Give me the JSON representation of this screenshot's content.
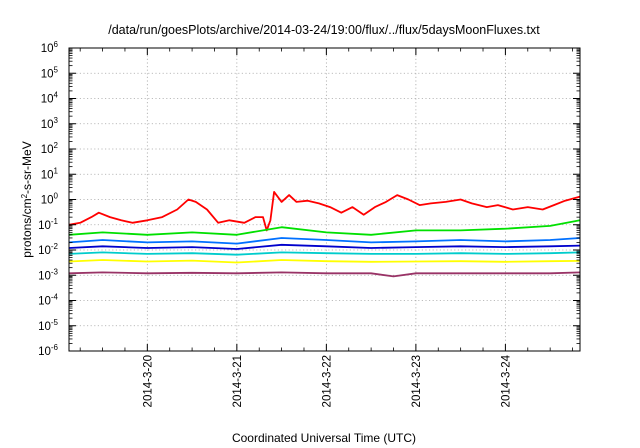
{
  "chart_data": {
    "type": "line",
    "title": "/data/run/goesPlots/archive/2014-03-24/19:00/flux/../flux/5daysMoonFluxes.txt",
    "xlabel": "Coordinated Universal Time (UTC)",
    "ylabel": {
      "base": "protons/cm",
      "sup": "2",
      "rest": "-s-sr-MeV"
    },
    "x_scale": "time",
    "y_scale": "log",
    "xlim": [
      "2014-03-19 03:00",
      "2014-03-24 20:00"
    ],
    "ylim": [
      1e-06,
      1000000.0
    ],
    "x_ticks": [
      {
        "x": "2014-03-20 00:00",
        "label": "2014-3-20"
      },
      {
        "x": "2014-03-21 00:00",
        "label": "2014-3-21"
      },
      {
        "x": "2014-03-22 00:00",
        "label": "2014-3-22"
      },
      {
        "x": "2014-03-23 00:00",
        "label": "2014-3-23"
      },
      {
        "x": "2014-03-24 00:00",
        "label": "2014-3-24"
      }
    ],
    "y_ticks": [
      {
        "exp": -6,
        "label_base": "10",
        "label_exp": "-6"
      },
      {
        "exp": -5,
        "label_base": "10",
        "label_exp": "-5"
      },
      {
        "exp": -4,
        "label_base": "10",
        "label_exp": "-4"
      },
      {
        "exp": -3,
        "label_base": "10",
        "label_exp": "-3"
      },
      {
        "exp": -2,
        "label_base": "10",
        "label_exp": "-2"
      },
      {
        "exp": -1,
        "label_base": "10",
        "label_exp": "-1"
      },
      {
        "exp": 0,
        "label_base": "10",
        "label_exp": "0"
      },
      {
        "exp": 1,
        "label_base": "10",
        "label_exp": "1"
      },
      {
        "exp": 2,
        "label_base": "10",
        "label_exp": "2"
      },
      {
        "exp": 3,
        "label_base": "10",
        "label_exp": "3"
      },
      {
        "exp": 4,
        "label_base": "10",
        "label_exp": "4"
      },
      {
        "exp": 5,
        "label_base": "10",
        "label_exp": "5"
      },
      {
        "exp": 6,
        "label_base": "10",
        "label_exp": "6"
      }
    ],
    "grid": true,
    "legend": "none",
    "series": [
      {
        "color": "#ff0000",
        "values": [
          [
            "2014-03-19 03:00",
            0.1
          ],
          [
            "2014-03-19 06:00",
            0.12
          ],
          [
            "2014-03-19 09:00",
            0.2
          ],
          [
            "2014-03-19 11:00",
            0.3
          ],
          [
            "2014-03-19 14:00",
            0.2
          ],
          [
            "2014-03-19 17:00",
            0.15
          ],
          [
            "2014-03-19 20:00",
            0.12
          ],
          [
            "2014-03-20 00:00",
            0.15
          ],
          [
            "2014-03-20 04:00",
            0.2
          ],
          [
            "2014-03-20 08:00",
            0.4
          ],
          [
            "2014-03-20 11:00",
            1.0
          ],
          [
            "2014-03-20 13:00",
            0.8
          ],
          [
            "2014-03-20 16:00",
            0.4
          ],
          [
            "2014-03-20 19:00",
            0.12
          ],
          [
            "2014-03-20 22:00",
            0.15
          ],
          [
            "2014-03-21 02:00",
            0.12
          ],
          [
            "2014-03-21 05:00",
            0.2
          ],
          [
            "2014-03-21 07:00",
            0.2
          ],
          [
            "2014-03-21 08:00",
            0.06
          ],
          [
            "2014-03-21 09:00",
            0.15
          ],
          [
            "2014-03-21 10:00",
            2.0
          ],
          [
            "2014-03-21 12:00",
            0.8
          ],
          [
            "2014-03-21 14:00",
            1.5
          ],
          [
            "2014-03-21 16:00",
            0.8
          ],
          [
            "2014-03-21 19:00",
            0.9
          ],
          [
            "2014-03-21 22:00",
            0.7
          ],
          [
            "2014-03-22 01:00",
            0.5
          ],
          [
            "2014-03-22 04:00",
            0.3
          ],
          [
            "2014-03-22 07:00",
            0.5
          ],
          [
            "2014-03-22 10:00",
            0.25
          ],
          [
            "2014-03-22 13:00",
            0.5
          ],
          [
            "2014-03-22 16:00",
            0.8
          ],
          [
            "2014-03-22 19:00",
            1.5
          ],
          [
            "2014-03-22 22:00",
            1.0
          ],
          [
            "2014-03-23 01:00",
            0.6
          ],
          [
            "2014-03-23 04:00",
            0.7
          ],
          [
            "2014-03-23 08:00",
            0.8
          ],
          [
            "2014-03-23 12:00",
            1.0
          ],
          [
            "2014-03-23 15:00",
            0.7
          ],
          [
            "2014-03-23 19:00",
            0.5
          ],
          [
            "2014-03-23 22:00",
            0.6
          ],
          [
            "2014-03-24 02:00",
            0.4
          ],
          [
            "2014-03-24 06:00",
            0.5
          ],
          [
            "2014-03-24 10:00",
            0.4
          ],
          [
            "2014-03-24 13:00",
            0.6
          ],
          [
            "2014-03-24 16:00",
            0.9
          ],
          [
            "2014-03-24 20:00",
            1.3
          ]
        ]
      },
      {
        "color": "#00e000",
        "values": [
          [
            "2014-03-19 03:00",
            0.04
          ],
          [
            "2014-03-19 12:00",
            0.05
          ],
          [
            "2014-03-20 00:00",
            0.04
          ],
          [
            "2014-03-20 12:00",
            0.05
          ],
          [
            "2014-03-21 00:00",
            0.04
          ],
          [
            "2014-03-21 12:00",
            0.08
          ],
          [
            "2014-03-22 00:00",
            0.05
          ],
          [
            "2014-03-22 12:00",
            0.04
          ],
          [
            "2014-03-23 00:00",
            0.06
          ],
          [
            "2014-03-23 12:00",
            0.06
          ],
          [
            "2014-03-24 00:00",
            0.07
          ],
          [
            "2014-03-24 12:00",
            0.09
          ],
          [
            "2014-03-24 20:00",
            0.15
          ]
        ]
      },
      {
        "color": "#0070ff",
        "values": [
          [
            "2014-03-19 03:00",
            0.02
          ],
          [
            "2014-03-19 12:00",
            0.025
          ],
          [
            "2014-03-20 00:00",
            0.02
          ],
          [
            "2014-03-20 12:00",
            0.022
          ],
          [
            "2014-03-21 00:00",
            0.018
          ],
          [
            "2014-03-21 12:00",
            0.03
          ],
          [
            "2014-03-22 00:00",
            0.025
          ],
          [
            "2014-03-22 12:00",
            0.02
          ],
          [
            "2014-03-23 00:00",
            0.022
          ],
          [
            "2014-03-23 12:00",
            0.025
          ],
          [
            "2014-03-24 00:00",
            0.022
          ],
          [
            "2014-03-24 12:00",
            0.025
          ],
          [
            "2014-03-24 20:00",
            0.03
          ]
        ]
      },
      {
        "color": "#0000cc",
        "values": [
          [
            "2014-03-19 03:00",
            0.012
          ],
          [
            "2014-03-19 12:00",
            0.014
          ],
          [
            "2014-03-20 00:00",
            0.012
          ],
          [
            "2014-03-20 12:00",
            0.013
          ],
          [
            "2014-03-21 00:00",
            0.011
          ],
          [
            "2014-03-21 12:00",
            0.016
          ],
          [
            "2014-03-22 00:00",
            0.014
          ],
          [
            "2014-03-22 12:00",
            0.012
          ],
          [
            "2014-03-23 00:00",
            0.013
          ],
          [
            "2014-03-23 12:00",
            0.014
          ],
          [
            "2014-03-24 00:00",
            0.013
          ],
          [
            "2014-03-24 12:00",
            0.014
          ],
          [
            "2014-03-24 20:00",
            0.015
          ]
        ]
      },
      {
        "color": "#00cccc",
        "values": [
          [
            "2014-03-19 03:00",
            0.007
          ],
          [
            "2014-03-19 12:00",
            0.008
          ],
          [
            "2014-03-20 00:00",
            0.007
          ],
          [
            "2014-03-20 12:00",
            0.0075
          ],
          [
            "2014-03-21 00:00",
            0.0065
          ],
          [
            "2014-03-21 12:00",
            0.008
          ],
          [
            "2014-03-22 00:00",
            0.0075
          ],
          [
            "2014-03-22 12:00",
            0.007
          ],
          [
            "2014-03-23 00:00",
            0.007
          ],
          [
            "2014-03-23 12:00",
            0.0075
          ],
          [
            "2014-03-24 00:00",
            0.007
          ],
          [
            "2014-03-24 12:00",
            0.0075
          ],
          [
            "2014-03-24 20:00",
            0.008
          ]
        ]
      },
      {
        "color": "#ffff00",
        "values": [
          [
            "2014-03-19 03:00",
            0.0035
          ],
          [
            "2014-03-19 12:00",
            0.004
          ],
          [
            "2014-03-20 00:00",
            0.0035
          ],
          [
            "2014-03-20 12:00",
            0.0038
          ],
          [
            "2014-03-21 00:00",
            0.0032
          ],
          [
            "2014-03-21 12:00",
            0.004
          ],
          [
            "2014-03-22 00:00",
            0.0036
          ],
          [
            "2014-03-22 12:00",
            0.0034
          ],
          [
            "2014-03-23 00:00",
            0.0035
          ],
          [
            "2014-03-23 12:00",
            0.0036
          ],
          [
            "2014-03-24 00:00",
            0.0034
          ],
          [
            "2014-03-24 12:00",
            0.0036
          ],
          [
            "2014-03-24 20:00",
            0.0037
          ]
        ]
      },
      {
        "color": "#993366",
        "values": [
          [
            "2014-03-19 03:00",
            0.0012
          ],
          [
            "2014-03-19 12:00",
            0.0013
          ],
          [
            "2014-03-20 00:00",
            0.0012
          ],
          [
            "2014-03-20 12:00",
            0.00125
          ],
          [
            "2014-03-21 00:00",
            0.0012
          ],
          [
            "2014-03-21 12:00",
            0.0013
          ],
          [
            "2014-03-22 00:00",
            0.0012
          ],
          [
            "2014-03-22 12:00",
            0.0012
          ],
          [
            "2014-03-22 18:00",
            0.0009
          ],
          [
            "2014-03-23 00:00",
            0.0012
          ],
          [
            "2014-03-23 12:00",
            0.0012
          ],
          [
            "2014-03-24 00:00",
            0.0012
          ],
          [
            "2014-03-24 12:00",
            0.0012
          ],
          [
            "2014-03-24 20:00",
            0.0013
          ]
        ]
      }
    ]
  }
}
